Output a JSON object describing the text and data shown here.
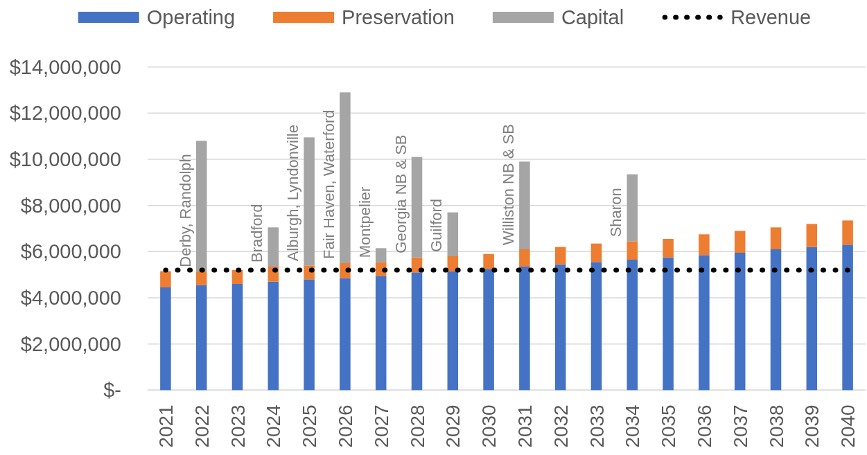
{
  "chart_data": {
    "type": "bar",
    "stacked": true,
    "categories": [
      "2021",
      "2022",
      "2023",
      "2024",
      "2025",
      "2026",
      "2027",
      "2028",
      "2029",
      "2030",
      "2031",
      "2032",
      "2033",
      "2034",
      "2035",
      "2036",
      "2037",
      "2038",
      "2039",
      "2040"
    ],
    "series": [
      {
        "name": "Operating",
        "color": "#4472c4",
        "values": [
          4450000,
          4550000,
          4600000,
          4700000,
          4800000,
          4850000,
          4950000,
          5100000,
          5150000,
          5250000,
          5350000,
          5450000,
          5550000,
          5650000,
          5750000,
          5850000,
          5950000,
          6100000,
          6200000,
          6300000
        ]
      },
      {
        "name": "Preservation",
        "color": "#ed7d31",
        "values": [
          700000,
          600000,
          600000,
          650000,
          600000,
          650000,
          600000,
          650000,
          650000,
          650000,
          750000,
          750000,
          800000,
          800000,
          800000,
          900000,
          950000,
          950000,
          1000000,
          1050000
        ]
      },
      {
        "name": "Capital",
        "color": "#a5a5a5",
        "values": [
          null,
          5650000,
          null,
          1700000,
          5550000,
          7400000,
          600000,
          4350000,
          1900000,
          null,
          3800000,
          null,
          null,
          2900000,
          null,
          null,
          null,
          null,
          null,
          null
        ]
      },
      {
        "name": "Revenue",
        "type": "line",
        "color": "#000000",
        "line_style": "dotted",
        "values": [
          5200000,
          5200000,
          5200000,
          5200000,
          5200000,
          5200000,
          5200000,
          5200000,
          5200000,
          5200000,
          5200000,
          5200000,
          5200000,
          5200000,
          5200000,
          5200000,
          5200000,
          5200000,
          5200000,
          5200000
        ]
      }
    ],
    "ylim": [
      0,
      14000000
    ],
    "yticks": [
      {
        "value": 0,
        "label": "$-"
      },
      {
        "value": 2000000,
        "label": "$2,000,000"
      },
      {
        "value": 4000000,
        "label": "$4,000,000"
      },
      {
        "value": 6000000,
        "label": "$6,000,000"
      },
      {
        "value": 8000000,
        "label": "$8,000,000"
      },
      {
        "value": 10000000,
        "label": "$10,000,000"
      },
      {
        "value": 12000000,
        "label": "$12,000,000"
      },
      {
        "value": 14000000,
        "label": "$14,000,000"
      }
    ],
    "grid": "y",
    "legend": "top",
    "annotations": [
      {
        "text": "Derby, Randolph",
        "x": "2022",
        "y": 5150000
      },
      {
        "text": "Bradford",
        "x": "2024",
        "y": 5350000
      },
      {
        "text": "Alburgh, Lyndonville",
        "x": "2025",
        "y": 5400000
      },
      {
        "text": "Fair Haven, Waterford",
        "x": "2026",
        "y": 5500000
      },
      {
        "text": "Montpelier",
        "x": "2027",
        "y": 5550000
      },
      {
        "text": "Georgia NB & SB",
        "x": "2028",
        "y": 5750000
      },
      {
        "text": "Guilford",
        "x": "2029",
        "y": 5800000
      },
      {
        "text": "Williston NB & SB",
        "x": "2031",
        "y": 6100000
      },
      {
        "text": "Sharon",
        "x": "2034",
        "y": 6450000
      }
    ]
  }
}
